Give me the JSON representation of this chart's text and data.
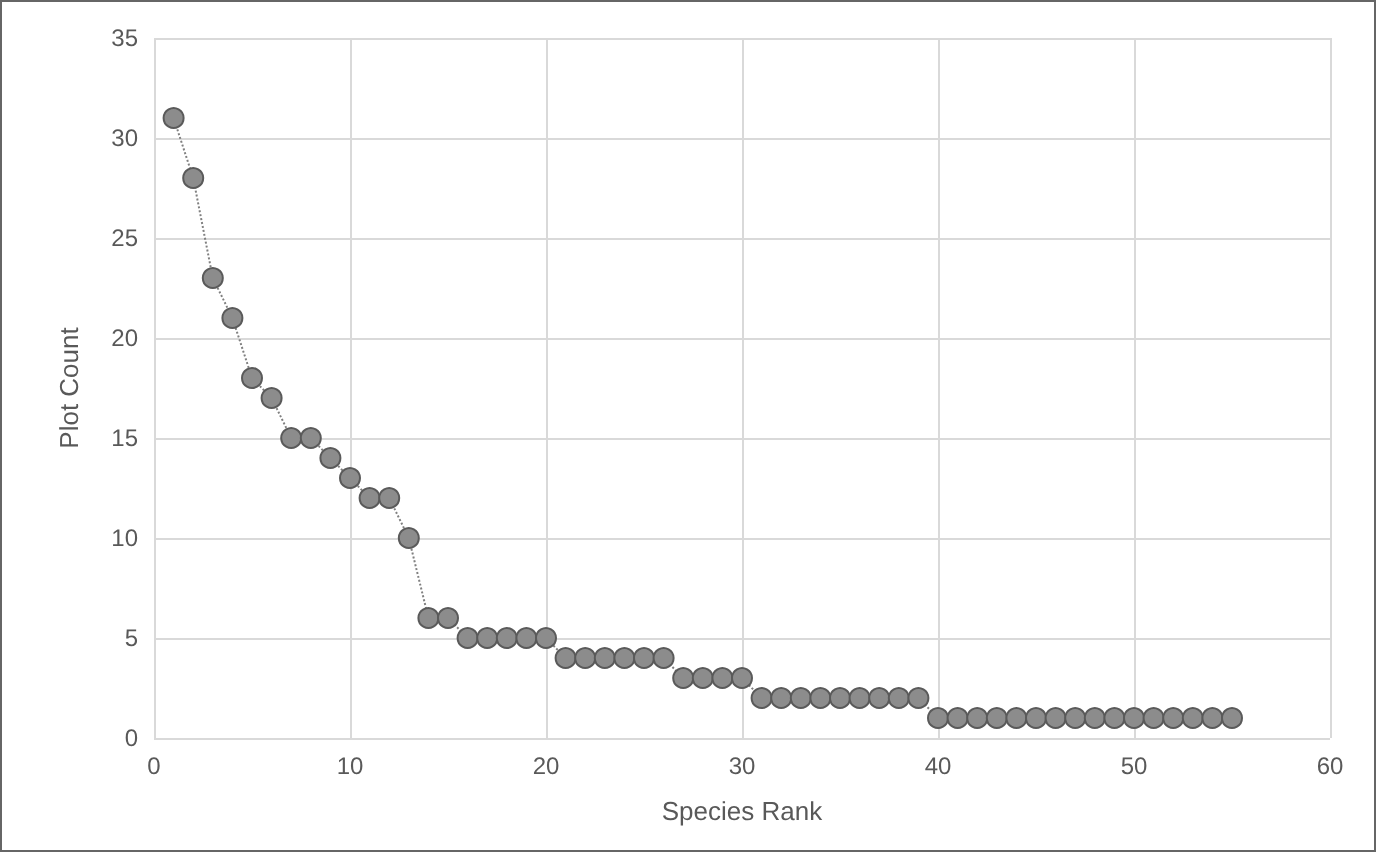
{
  "chart_data": {
    "type": "line",
    "xlabel": "Species Rank",
    "ylabel": "Plot Count",
    "x": [
      1,
      2,
      3,
      4,
      5,
      6,
      7,
      8,
      9,
      10,
      11,
      12,
      13,
      14,
      15,
      16,
      17,
      18,
      19,
      20,
      21,
      22,
      23,
      24,
      25,
      26,
      27,
      28,
      29,
      30,
      31,
      32,
      33,
      34,
      35,
      36,
      37,
      38,
      39,
      40,
      41,
      42,
      43,
      44,
      45,
      46,
      47,
      48,
      49,
      50,
      51,
      52,
      53,
      54,
      55
    ],
    "series": [
      {
        "color": "#8c8c8c",
        "values": [
          31,
          28,
          23,
          21,
          18,
          17,
          15,
          15,
          14,
          13,
          12,
          12,
          10,
          6,
          6,
          5,
          5,
          5,
          5,
          5,
          4,
          4,
          4,
          4,
          4,
          4,
          3,
          3,
          3,
          3,
          2,
          2,
          2,
          2,
          2,
          2,
          2,
          2,
          2,
          1,
          1,
          1,
          1,
          1,
          1,
          1,
          1,
          1,
          1,
          1,
          1,
          1,
          1,
          1,
          1
        ]
      }
    ],
    "xlim": [
      0,
      60
    ],
    "xticks": [
      0,
      10,
      20,
      30,
      40,
      50,
      60
    ],
    "ylim": [
      0,
      35
    ],
    "yticks": [
      0,
      5,
      10,
      15,
      20,
      25,
      30,
      35
    ],
    "grid": true,
    "marker": "circle",
    "line_style": "dotted"
  }
}
